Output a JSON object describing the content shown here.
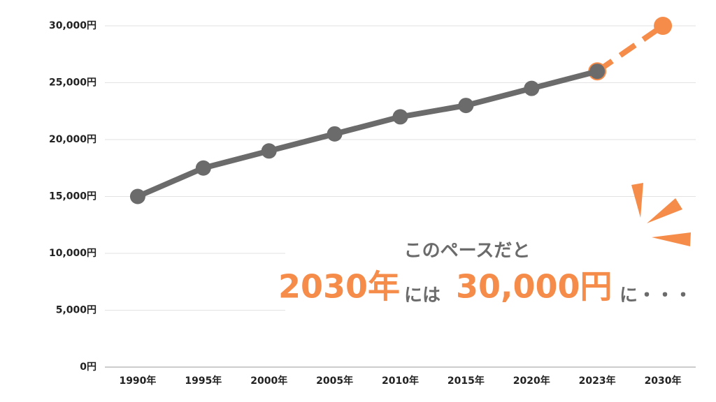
{
  "chart_data": {
    "type": "line",
    "categories": [
      "1990年",
      "1995年",
      "2000年",
      "2005年",
      "2010年",
      "2015年",
      "2020年",
      "2023年",
      "2030年"
    ],
    "series": [
      {
        "color": "#6b6b6b",
        "dashed": false,
        "values": [
          15000,
          17500,
          19000,
          20500,
          22000,
          23000,
          24500,
          26000,
          null
        ]
      },
      {
        "color": "#f68c4a",
        "dashed": true,
        "values": [
          null,
          null,
          null,
          null,
          null,
          null,
          null,
          26000,
          30000
        ]
      }
    ],
    "ylim": [
      0,
      30000
    ],
    "yticks": [
      {
        "value": 0,
        "label": "0円"
      },
      {
        "value": 5000,
        "label": "5,000円"
      },
      {
        "value": 10000,
        "label": "10,000円"
      },
      {
        "value": 15000,
        "label": "15,000円"
      },
      {
        "value": 20000,
        "label": "20,000円"
      },
      {
        "value": 25000,
        "label": "25,000円"
      },
      {
        "value": 30000,
        "label": "30,000円"
      }
    ],
    "grid": true,
    "annotations": [
      "このペースだと",
      "2030年",
      "には",
      "30,000円",
      "に・・・"
    ]
  }
}
